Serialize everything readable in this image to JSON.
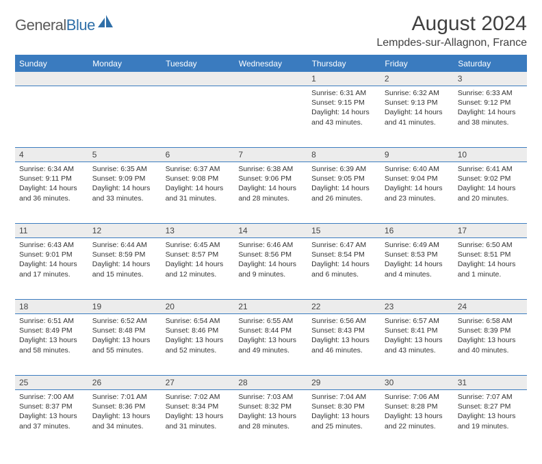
{
  "logo": {
    "word1": "General",
    "word2": "Blue"
  },
  "title": "August 2024",
  "location": "Lempdes-sur-Allagnon, France",
  "colors": {
    "header_bg": "#3a7bbf",
    "header_text": "#ffffff",
    "daynum_bg": "#ececec",
    "border": "#3a7bbf",
    "text": "#333333",
    "logo_gray": "#5a5a5a",
    "logo_blue": "#2f6fa8"
  },
  "weekdays": [
    "Sunday",
    "Monday",
    "Tuesday",
    "Wednesday",
    "Thursday",
    "Friday",
    "Saturday"
  ],
  "weeks": [
    [
      null,
      null,
      null,
      null,
      {
        "n": "1",
        "sr": "Sunrise: 6:31 AM",
        "ss": "Sunset: 9:15 PM",
        "dl": "Daylight: 14 hours and 43 minutes."
      },
      {
        "n": "2",
        "sr": "Sunrise: 6:32 AM",
        "ss": "Sunset: 9:13 PM",
        "dl": "Daylight: 14 hours and 41 minutes."
      },
      {
        "n": "3",
        "sr": "Sunrise: 6:33 AM",
        "ss": "Sunset: 9:12 PM",
        "dl": "Daylight: 14 hours and 38 minutes."
      }
    ],
    [
      {
        "n": "4",
        "sr": "Sunrise: 6:34 AM",
        "ss": "Sunset: 9:11 PM",
        "dl": "Daylight: 14 hours and 36 minutes."
      },
      {
        "n": "5",
        "sr": "Sunrise: 6:35 AM",
        "ss": "Sunset: 9:09 PM",
        "dl": "Daylight: 14 hours and 33 minutes."
      },
      {
        "n": "6",
        "sr": "Sunrise: 6:37 AM",
        "ss": "Sunset: 9:08 PM",
        "dl": "Daylight: 14 hours and 31 minutes."
      },
      {
        "n": "7",
        "sr": "Sunrise: 6:38 AM",
        "ss": "Sunset: 9:06 PM",
        "dl": "Daylight: 14 hours and 28 minutes."
      },
      {
        "n": "8",
        "sr": "Sunrise: 6:39 AM",
        "ss": "Sunset: 9:05 PM",
        "dl": "Daylight: 14 hours and 26 minutes."
      },
      {
        "n": "9",
        "sr": "Sunrise: 6:40 AM",
        "ss": "Sunset: 9:04 PM",
        "dl": "Daylight: 14 hours and 23 minutes."
      },
      {
        "n": "10",
        "sr": "Sunrise: 6:41 AM",
        "ss": "Sunset: 9:02 PM",
        "dl": "Daylight: 14 hours and 20 minutes."
      }
    ],
    [
      {
        "n": "11",
        "sr": "Sunrise: 6:43 AM",
        "ss": "Sunset: 9:01 PM",
        "dl": "Daylight: 14 hours and 17 minutes."
      },
      {
        "n": "12",
        "sr": "Sunrise: 6:44 AM",
        "ss": "Sunset: 8:59 PM",
        "dl": "Daylight: 14 hours and 15 minutes."
      },
      {
        "n": "13",
        "sr": "Sunrise: 6:45 AM",
        "ss": "Sunset: 8:57 PM",
        "dl": "Daylight: 14 hours and 12 minutes."
      },
      {
        "n": "14",
        "sr": "Sunrise: 6:46 AM",
        "ss": "Sunset: 8:56 PM",
        "dl": "Daylight: 14 hours and 9 minutes."
      },
      {
        "n": "15",
        "sr": "Sunrise: 6:47 AM",
        "ss": "Sunset: 8:54 PM",
        "dl": "Daylight: 14 hours and 6 minutes."
      },
      {
        "n": "16",
        "sr": "Sunrise: 6:49 AM",
        "ss": "Sunset: 8:53 PM",
        "dl": "Daylight: 14 hours and 4 minutes."
      },
      {
        "n": "17",
        "sr": "Sunrise: 6:50 AM",
        "ss": "Sunset: 8:51 PM",
        "dl": "Daylight: 14 hours and 1 minute."
      }
    ],
    [
      {
        "n": "18",
        "sr": "Sunrise: 6:51 AM",
        "ss": "Sunset: 8:49 PM",
        "dl": "Daylight: 13 hours and 58 minutes."
      },
      {
        "n": "19",
        "sr": "Sunrise: 6:52 AM",
        "ss": "Sunset: 8:48 PM",
        "dl": "Daylight: 13 hours and 55 minutes."
      },
      {
        "n": "20",
        "sr": "Sunrise: 6:54 AM",
        "ss": "Sunset: 8:46 PM",
        "dl": "Daylight: 13 hours and 52 minutes."
      },
      {
        "n": "21",
        "sr": "Sunrise: 6:55 AM",
        "ss": "Sunset: 8:44 PM",
        "dl": "Daylight: 13 hours and 49 minutes."
      },
      {
        "n": "22",
        "sr": "Sunrise: 6:56 AM",
        "ss": "Sunset: 8:43 PM",
        "dl": "Daylight: 13 hours and 46 minutes."
      },
      {
        "n": "23",
        "sr": "Sunrise: 6:57 AM",
        "ss": "Sunset: 8:41 PM",
        "dl": "Daylight: 13 hours and 43 minutes."
      },
      {
        "n": "24",
        "sr": "Sunrise: 6:58 AM",
        "ss": "Sunset: 8:39 PM",
        "dl": "Daylight: 13 hours and 40 minutes."
      }
    ],
    [
      {
        "n": "25",
        "sr": "Sunrise: 7:00 AM",
        "ss": "Sunset: 8:37 PM",
        "dl": "Daylight: 13 hours and 37 minutes."
      },
      {
        "n": "26",
        "sr": "Sunrise: 7:01 AM",
        "ss": "Sunset: 8:36 PM",
        "dl": "Daylight: 13 hours and 34 minutes."
      },
      {
        "n": "27",
        "sr": "Sunrise: 7:02 AM",
        "ss": "Sunset: 8:34 PM",
        "dl": "Daylight: 13 hours and 31 minutes."
      },
      {
        "n": "28",
        "sr": "Sunrise: 7:03 AM",
        "ss": "Sunset: 8:32 PM",
        "dl": "Daylight: 13 hours and 28 minutes."
      },
      {
        "n": "29",
        "sr": "Sunrise: 7:04 AM",
        "ss": "Sunset: 8:30 PM",
        "dl": "Daylight: 13 hours and 25 minutes."
      },
      {
        "n": "30",
        "sr": "Sunrise: 7:06 AM",
        "ss": "Sunset: 8:28 PM",
        "dl": "Daylight: 13 hours and 22 minutes."
      },
      {
        "n": "31",
        "sr": "Sunrise: 7:07 AM",
        "ss": "Sunset: 8:27 PM",
        "dl": "Daylight: 13 hours and 19 minutes."
      }
    ]
  ]
}
